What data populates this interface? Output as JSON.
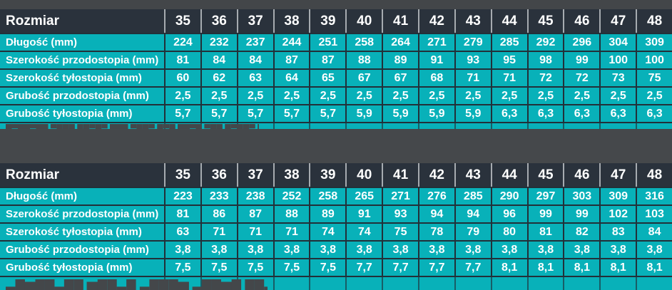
{
  "colors": {
    "teal_row": "#08b1b9",
    "header_row": "#2a323c",
    "gray_band": "#45484b",
    "separator_light": "#a6abb0",
    "separator_dark": "#223039",
    "text": "#ffffff"
  },
  "ui": {
    "clipped_patterns": [
      "█▀██▀██ ▀███ ██▀█▀ ███ ▀██▀ █▀█ ██▀█ ▀██ █▀██▀ ██▀ ▀███ █▀",
      "▄█▆██▄██ ▆██▄█ ▄███▆ ▄██▆█ ██▄█ ▆█▄██ ▄██▆ █▄██ ▆██▄ ███▄▆"
    ]
  },
  "chart_data": [
    {
      "type": "table",
      "columns": [
        "Rozmiar",
        "35",
        "36",
        "37",
        "38",
        "39",
        "40",
        "41",
        "42",
        "43",
        "44",
        "45",
        "46",
        "47",
        "48"
      ],
      "rows": [
        [
          "Długość (mm)",
          "224",
          "232",
          "237",
          "244",
          "251",
          "258",
          "264",
          "271",
          "279",
          "285",
          "292",
          "296",
          "304",
          "309"
        ],
        [
          "Szerokość przodostopia (mm)",
          "81",
          "84",
          "84",
          "87",
          "87",
          "88",
          "89",
          "91",
          "93",
          "95",
          "98",
          "99",
          "100",
          "100"
        ],
        [
          "Szerokość tyłostopia (mm)",
          "60",
          "62",
          "63",
          "64",
          "65",
          "67",
          "67",
          "68",
          "71",
          "71",
          "72",
          "72",
          "73",
          "75"
        ],
        [
          "Grubość przodostopia (mm)",
          "2,5",
          "2,5",
          "2,5",
          "2,5",
          "2,5",
          "2,5",
          "2,5",
          "2,5",
          "2,5",
          "2,5",
          "2,5",
          "2,5",
          "2,5",
          "2,5"
        ],
        [
          "Grubość tyłostopia (mm)",
          "5,7",
          "5,7",
          "5,7",
          "5,7",
          "5,7",
          "5,9",
          "5,9",
          "5,9",
          "5,9",
          "6,3",
          "6,3",
          "6,3",
          "6,3",
          "6,3"
        ]
      ]
    },
    {
      "type": "table",
      "columns": [
        "Rozmiar",
        "35",
        "36",
        "37",
        "38",
        "39",
        "40",
        "41",
        "42",
        "43",
        "44",
        "45",
        "46",
        "47",
        "48"
      ],
      "rows": [
        [
          "Długość (mm)",
          "223",
          "233",
          "238",
          "252",
          "258",
          "265",
          "271",
          "276",
          "285",
          "290",
          "297",
          "303",
          "309",
          "316"
        ],
        [
          "Szerokość przodostopia (mm)",
          "81",
          "86",
          "87",
          "88",
          "89",
          "91",
          "93",
          "94",
          "94",
          "96",
          "99",
          "99",
          "102",
          "103"
        ],
        [
          "Szerokość tyłostopia (mm)",
          "63",
          "71",
          "71",
          "71",
          "74",
          "74",
          "75",
          "78",
          "79",
          "80",
          "81",
          "82",
          "83",
          "84"
        ],
        [
          "Grubość przodostopia (mm)",
          "3,8",
          "3,8",
          "3,8",
          "3,8",
          "3,8",
          "3,8",
          "3,8",
          "3,8",
          "3,8",
          "3,8",
          "3,8",
          "3,8",
          "3,8",
          "3,8"
        ],
        [
          "Grubość tyłostopia (mm)",
          "7,5",
          "7,5",
          "7,5",
          "7,5",
          "7,5",
          "7,7",
          "7,7",
          "7,7",
          "7,7",
          "8,1",
          "8,1",
          "8,1",
          "8,1",
          "8,1"
        ]
      ]
    }
  ]
}
